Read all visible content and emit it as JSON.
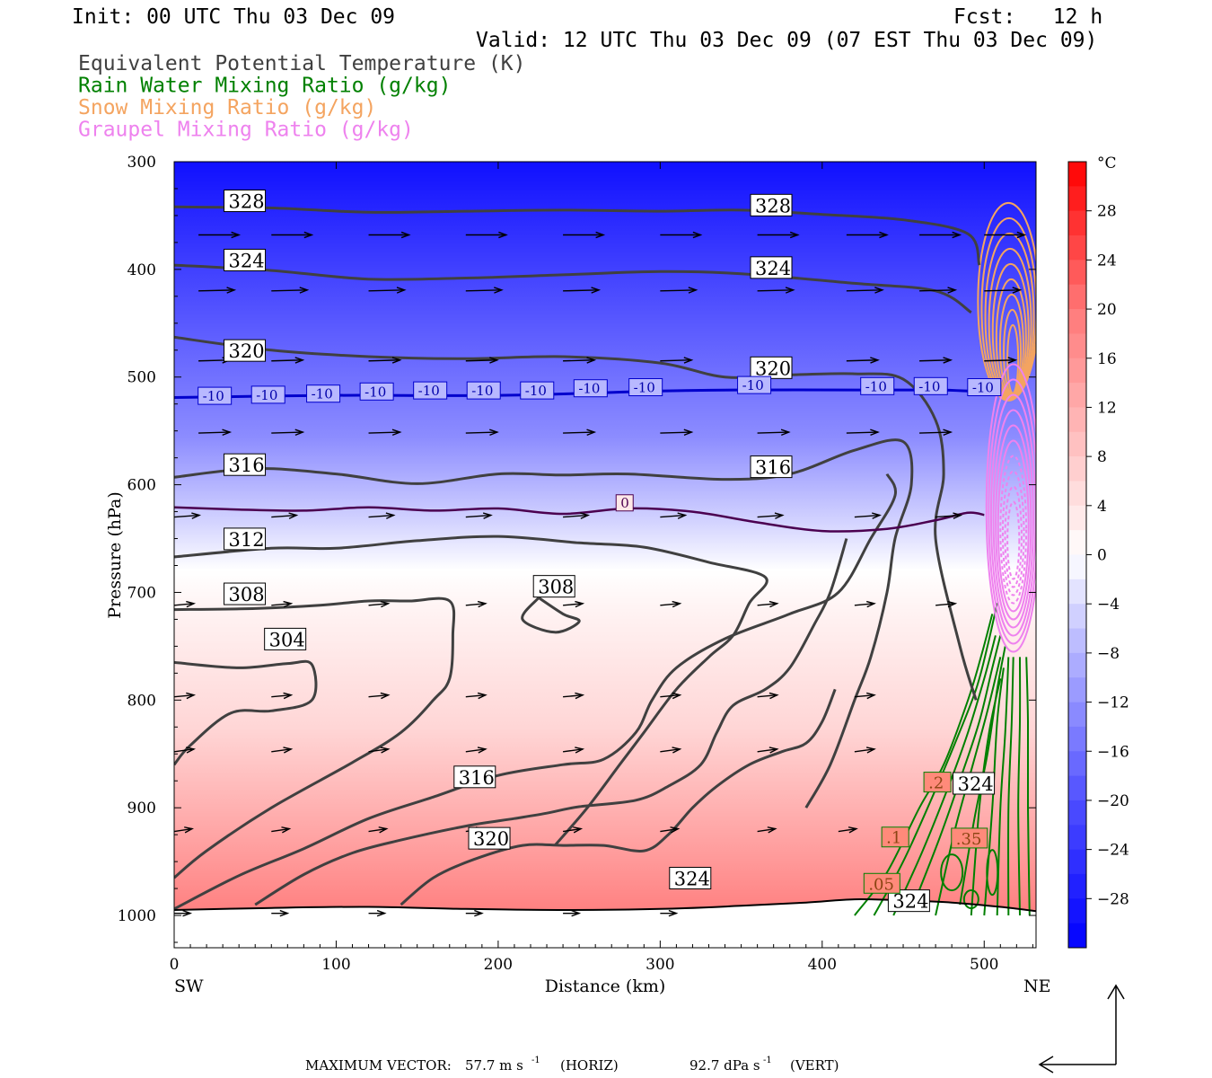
{
  "header": {
    "init": "Init: 00 UTC Thu 03 Dec 09",
    "fcst": "Fcst:   12 h",
    "valid": "Valid: 12 UTC Thu 03 Dec 09 (07 EST Thu 03 Dec 09)",
    "legend": [
      {
        "text": "Equivalent Potential Temperature (K)",
        "color": "#404040"
      },
      {
        "text": "Rain Water Mixing Ratio (g/kg)",
        "color": "#008000"
      },
      {
        "text": "Snow Mixing Ratio (g/kg)",
        "color": "#f4a460"
      },
      {
        "text": "Graupel Mixing Ratio (g/kg)",
        "color": "#ee82ee"
      }
    ]
  },
  "footer": {
    "max_vector_label": "MAXIMUM VECTOR:",
    "horiz_value": "57.7 m s",
    "horiz_unit": "(HORIZ)",
    "vert_value": "92.7 dPa s",
    "vert_unit": "(VERT)",
    "exponent": "-1"
  },
  "chart_data": {
    "type": "cross-section",
    "xlabel": "Distance (km)",
    "ylabel": "Pressure (hPa)",
    "xlim": [
      0,
      532
    ],
    "ylim": [
      1030,
      300
    ],
    "x_ticks": [
      0,
      100,
      200,
      300,
      400,
      500
    ],
    "y_ticks": [
      300,
      400,
      500,
      600,
      700,
      800,
      900,
      1000
    ],
    "x_end_labels": {
      "left": "SW",
      "right": "NE"
    },
    "colorbar": {
      "unit": "°C",
      "ticks": [
        28,
        24,
        20,
        16,
        12,
        8,
        4,
        0,
        -4,
        -8,
        -12,
        -16,
        -20,
        -24,
        -28
      ],
      "range": [
        -32,
        32
      ]
    },
    "theta_e_labels": [
      {
        "text": "328",
        "x": 33,
        "p": 343
      },
      {
        "text": "328",
        "x": 358,
        "p": 347
      },
      {
        "text": "324",
        "x": 33,
        "p": 398
      },
      {
        "text": "324",
        "x": 358,
        "p": 405
      },
      {
        "text": "320",
        "x": 33,
        "p": 482
      },
      {
        "text": "320",
        "x": 358,
        "p": 498
      },
      {
        "text": "316",
        "x": 33,
        "p": 588
      },
      {
        "text": "316",
        "x": 358,
        "p": 590
      },
      {
        "text": "312",
        "x": 33,
        "p": 657
      },
      {
        "text": "308",
        "x": 33,
        "p": 708
      },
      {
        "text": "308",
        "x": 224,
        "p": 701
      },
      {
        "text": "304",
        "x": 58,
        "p": 750
      },
      {
        "text": "316",
        "x": 175,
        "p": 878
      },
      {
        "text": "320",
        "x": 184,
        "p": 935
      },
      {
        "text": "324",
        "x": 308,
        "p": 972
      },
      {
        "text": "324",
        "x": 443,
        "p": 993
      },
      {
        "text": "324",
        "x": 483,
        "p": 884
      }
    ],
    "temperature_labels": [
      {
        "text": "-10",
        "x": 17,
        "p": 522
      },
      {
        "text": "-10",
        "x": 50,
        "p": 521
      },
      {
        "text": "-10",
        "x": 84,
        "p": 520
      },
      {
        "text": "-10",
        "x": 117,
        "p": 518
      },
      {
        "text": "-10",
        "x": 150,
        "p": 517
      },
      {
        "text": "-10",
        "x": 183,
        "p": 517
      },
      {
        "text": "-10",
        "x": 216,
        "p": 517
      },
      {
        "text": "-10",
        "x": 249,
        "p": 515
      },
      {
        "text": "-10",
        "x": 283,
        "p": 514
      },
      {
        "text": "-10",
        "x": 350,
        "p": 512
      },
      {
        "text": "-10",
        "x": 426,
        "p": 513
      },
      {
        "text": "-10",
        "x": 459,
        "p": 513
      },
      {
        "text": "-10",
        "x": 492,
        "p": 514
      },
      {
        "text": "0",
        "x": 275,
        "p": 621
      }
    ],
    "mixing_ratio_labels": [
      {
        "text": ".2",
        "x": 465,
        "p": 882
      },
      {
        "text": ".1",
        "x": 439,
        "p": 933
      },
      {
        "text": ".35",
        "x": 482,
        "p": 934
      },
      {
        "text": ".05",
        "x": 428,
        "p": 976
      }
    ],
    "theta_e_contours": [
      {
        "v": 328,
        "pts": [
          [
            0,
            342
          ],
          [
            60,
            343
          ],
          [
            120,
            347
          ],
          [
            180,
            346
          ],
          [
            240,
            345
          ],
          [
            300,
            346
          ],
          [
            350,
            345
          ],
          [
            400,
            349
          ],
          [
            450,
            354
          ],
          [
            490,
            367
          ],
          [
            497,
            396
          ]
        ]
      },
      {
        "v": 324,
        "pts": [
          [
            0,
            396
          ],
          [
            60,
            401
          ],
          [
            120,
            409
          ],
          [
            180,
            408
          ],
          [
            240,
            405
          ],
          [
            300,
            402
          ],
          [
            350,
            404
          ],
          [
            420,
            413
          ],
          [
            470,
            420
          ],
          [
            492,
            440
          ]
        ]
      },
      {
        "v": 320,
        "pts": [
          [
            0,
            463
          ],
          [
            60,
            475
          ],
          [
            120,
            481
          ],
          [
            180,
            483
          ],
          [
            240,
            481
          ],
          [
            300,
            487
          ],
          [
            340,
            500
          ],
          [
            380,
            498
          ],
          [
            420,
            497
          ],
          [
            450,
            502
          ],
          [
            470,
            540
          ],
          [
            475,
            590
          ],
          [
            470,
            650
          ],
          [
            485,
            750
          ],
          [
            495,
            800
          ]
        ]
      },
      {
        "v": 316,
        "pts": [
          [
            0,
            593
          ],
          [
            50,
            585
          ],
          [
            100,
            590
          ],
          [
            150,
            599
          ],
          [
            200,
            590
          ],
          [
            240,
            591
          ],
          [
            280,
            590
          ],
          [
            340,
            595
          ],
          [
            380,
            590
          ],
          [
            420,
            568
          ],
          [
            450,
            560
          ],
          [
            455,
            600
          ],
          [
            445,
            650
          ],
          [
            440,
            700
          ],
          [
            430,
            760
          ],
          [
            420,
            800
          ],
          [
            405,
            860
          ],
          [
            390,
            900
          ]
        ]
      },
      {
        "v": 312,
        "pts": [
          [
            0,
            667
          ],
          [
            60,
            659
          ],
          [
            100,
            659
          ],
          [
            150,
            652
          ],
          [
            200,
            648
          ],
          [
            250,
            654
          ],
          [
            290,
            658
          ],
          [
            330,
            672
          ],
          [
            365,
            686
          ],
          [
            355,
            710
          ],
          [
            345,
            740
          ],
          [
            330,
            760
          ],
          [
            310,
            790
          ],
          [
            290,
            830
          ],
          [
            275,
            860
          ],
          [
            255,
            900
          ],
          [
            235,
            935
          ]
        ]
      },
      {
        "v": 308,
        "pts": [
          [
            0,
            716
          ],
          [
            50,
            715
          ],
          [
            90,
            712
          ],
          [
            120,
            708
          ],
          [
            145,
            708
          ],
          [
            170,
            708
          ],
          [
            172,
            740
          ],
          [
            170,
            780
          ],
          [
            160,
            800
          ],
          [
            140,
            830
          ],
          [
            110,
            858
          ],
          [
            60,
            900
          ],
          [
            20,
            940
          ],
          [
            0,
            965
          ]
        ]
      },
      {
        "v": 304,
        "pts": [
          [
            0,
            765
          ],
          [
            40,
            770
          ],
          [
            70,
            766
          ],
          [
            85,
            767
          ],
          [
            85,
            800
          ],
          [
            60,
            810
          ],
          [
            35,
            812
          ],
          [
            10,
            842
          ],
          [
            0,
            860
          ]
        ]
      },
      {
        "v": 308,
        "pts": [
          [
            225,
            705
          ],
          [
            240,
            720
          ],
          [
            250,
            727
          ],
          [
            235,
            737
          ],
          [
            215,
            725
          ],
          [
            225,
            705
          ]
        ]
      },
      {
        "v": 316,
        "pts": [
          [
            0,
            994
          ],
          [
            40,
            963
          ],
          [
            80,
            938
          ],
          [
            120,
            910
          ],
          [
            160,
            890
          ],
          [
            200,
            870
          ],
          [
            240,
            860
          ],
          [
            265,
            855
          ],
          [
            285,
            830
          ],
          [
            295,
            800
          ],
          [
            310,
            770
          ],
          [
            340,
            743
          ],
          [
            380,
            720
          ],
          [
            410,
            700
          ],
          [
            430,
            650
          ],
          [
            445,
            610
          ],
          [
            440,
            590
          ]
        ]
      },
      {
        "v": 320,
        "pts": [
          [
            50,
            990
          ],
          [
            80,
            962
          ],
          [
            110,
            942
          ],
          [
            140,
            930
          ],
          [
            180,
            917
          ],
          [
            210,
            910
          ],
          [
            230,
            905
          ],
          [
            250,
            899
          ],
          [
            285,
            893
          ],
          [
            305,
            880
          ],
          [
            325,
            860
          ],
          [
            335,
            830
          ],
          [
            345,
            805
          ],
          [
            365,
            790
          ],
          [
            380,
            770
          ],
          [
            395,
            730
          ],
          [
            405,
            700
          ],
          [
            415,
            650
          ]
        ]
      },
      {
        "v": 324,
        "pts": [
          [
            140,
            990
          ],
          [
            160,
            965
          ],
          [
            185,
            948
          ],
          [
            215,
            935
          ],
          [
            240,
            935
          ],
          [
            265,
            935
          ],
          [
            290,
            940
          ],
          [
            305,
            925
          ],
          [
            320,
            900
          ],
          [
            335,
            880
          ],
          [
            355,
            860
          ],
          [
            375,
            848
          ],
          [
            390,
            840
          ],
          [
            400,
            820
          ],
          [
            408,
            790
          ]
        ]
      }
    ],
    "temperature_contours": [
      {
        "v": -10,
        "pts": [
          [
            0,
            519
          ],
          [
            100,
            517
          ],
          [
            200,
            517
          ],
          [
            300,
            513
          ],
          [
            350,
            512
          ],
          [
            420,
            512
          ],
          [
            470,
            512
          ],
          [
            490,
            513
          ],
          [
            500,
            514
          ]
        ]
      },
      {
        "v": 0,
        "pts": [
          [
            0,
            621
          ],
          [
            40,
            623
          ],
          [
            80,
            624
          ],
          [
            120,
            621
          ],
          [
            160,
            624
          ],
          [
            200,
            622
          ],
          [
            240,
            627
          ],
          [
            280,
            622
          ],
          [
            320,
            625
          ],
          [
            360,
            635
          ],
          [
            400,
            643
          ],
          [
            440,
            641
          ],
          [
            470,
            633
          ],
          [
            490,
            626
          ],
          [
            500,
            628
          ]
        ]
      }
    ],
    "vector_rows": [
      {
        "p": 368,
        "xs": [
          15,
          60,
          120,
          180,
          240,
          300,
          360,
          415,
          460,
          500
        ],
        "u": 45,
        "w": 0
      },
      {
        "p": 420,
        "xs": [
          15,
          60,
          120,
          180,
          240,
          300,
          360,
          415,
          460,
          500
        ],
        "u": 40,
        "w": 1
      },
      {
        "p": 485,
        "xs": [
          15,
          60,
          120,
          180,
          240,
          300,
          360,
          415,
          460,
          500
        ],
        "u": 35,
        "w": 1
      },
      {
        "p": 552,
        "xs": [
          15,
          60,
          120,
          180,
          240,
          300,
          360,
          415,
          460
        ],
        "u": 35,
        "w": 1
      },
      {
        "p": 630,
        "xs": [
          0,
          60,
          120,
          180,
          240,
          300,
          360,
          420,
          470
        ],
        "u": 28,
        "w": 2
      },
      {
        "p": 712,
        "xs": [
          0,
          60,
          120,
          180,
          240,
          300,
          360,
          420,
          470
        ],
        "u": 22,
        "w": 2
      },
      {
        "p": 797,
        "xs": [
          0,
          60,
          120,
          180,
          240,
          300,
          360,
          420
        ],
        "u": 22,
        "w": 2
      },
      {
        "p": 848,
        "xs": [
          0,
          60,
          120,
          180,
          240,
          300,
          360,
          420
        ],
        "u": 22,
        "w": 3
      },
      {
        "p": 922,
        "xs": [
          0,
          60,
          120,
          180,
          240,
          300,
          360,
          410
        ],
        "u": 20,
        "w": 3
      },
      {
        "p": 998,
        "xs": [
          0,
          60,
          120,
          180,
          240,
          300
        ],
        "u": 18,
        "w": 0
      }
    ],
    "rain_region": {
      "x_range": [
        430,
        532
      ],
      "p_range": [
        700,
        1000
      ]
    },
    "snow_region": {
      "x_center": 515,
      "p_center": 430
    },
    "graupel_region": {
      "x_center": 518,
      "p_center": 630
    },
    "surface": [
      [
        0,
        995
      ],
      [
        60,
        993
      ],
      [
        120,
        992
      ],
      [
        180,
        994
      ],
      [
        240,
        995
      ],
      [
        300,
        994
      ],
      [
        350,
        991
      ],
      [
        390,
        988
      ],
      [
        420,
        985
      ],
      [
        450,
        986
      ],
      [
        480,
        988
      ],
      [
        510,
        992
      ],
      [
        532,
        996
      ]
    ]
  }
}
